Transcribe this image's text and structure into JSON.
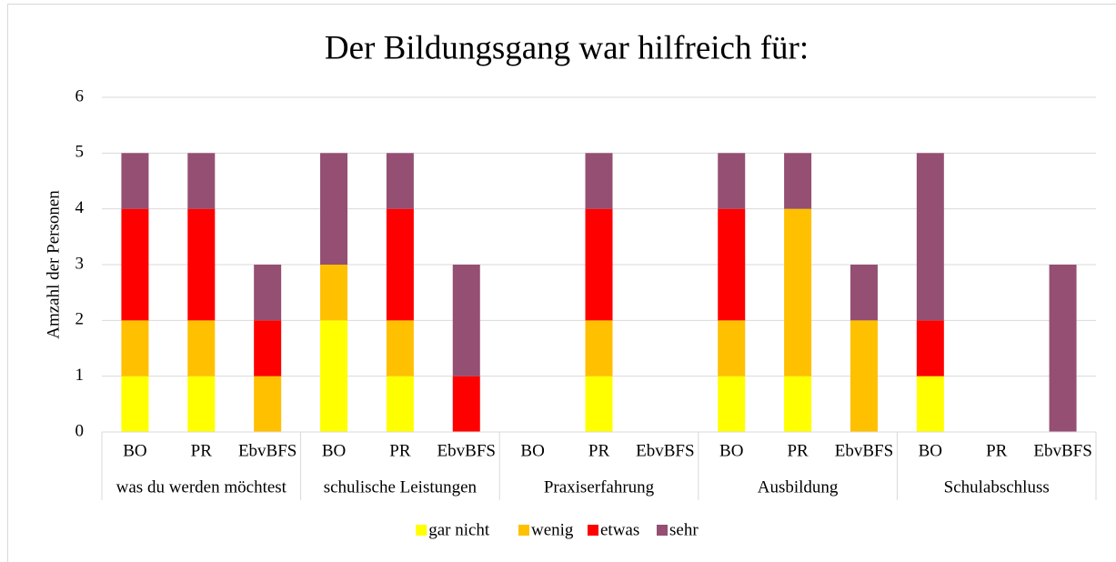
{
  "chart_data": {
    "type": "stacked_bar",
    "title": "Der Bildungsgang war hilfreich für:",
    "ylabel": "Amzahl der Personen",
    "categories": [
      "BO",
      "PR",
      "EbvBFS",
      "BO",
      "PR",
      "EbvBFS",
      "BO",
      "PR",
      "EbvBFS",
      "BO",
      "PR",
      "EbvBFS",
      "BO",
      "PR",
      "EbvBFS"
    ],
    "groups": [
      "was du werden möchtest",
      "schulische Leistungen",
      "Praxiserfahrung",
      "Ausbildung",
      "Schulabschluss"
    ],
    "series": [
      {
        "name": "gar nicht",
        "color": "#ffff00",
        "values": [
          1,
          1,
          0,
          2,
          1,
          0,
          0,
          1,
          0,
          1,
          1,
          0,
          1,
          0,
          0
        ]
      },
      {
        "name": "wenig",
        "color": "#ffc000",
        "values": [
          1,
          1,
          1,
          1,
          1,
          0,
          0,
          1,
          0,
          1,
          3,
          2,
          0,
          0,
          0
        ]
      },
      {
        "name": "etwas",
        "color": "#ff0000",
        "values": [
          2,
          2,
          1,
          0,
          2,
          1,
          0,
          2,
          0,
          2,
          0,
          0,
          1,
          0,
          0
        ]
      },
      {
        "name": "sehr",
        "color": "#954f72",
        "values": [
          1,
          1,
          1,
          2,
          1,
          2,
          0,
          1,
          0,
          1,
          1,
          1,
          3,
          0,
          3
        ]
      }
    ],
    "ylim": [
      0,
      6
    ],
    "yticks": [
      0,
      1,
      2,
      3,
      4,
      5,
      6
    ],
    "grid": true,
    "legend": "bottom"
  }
}
